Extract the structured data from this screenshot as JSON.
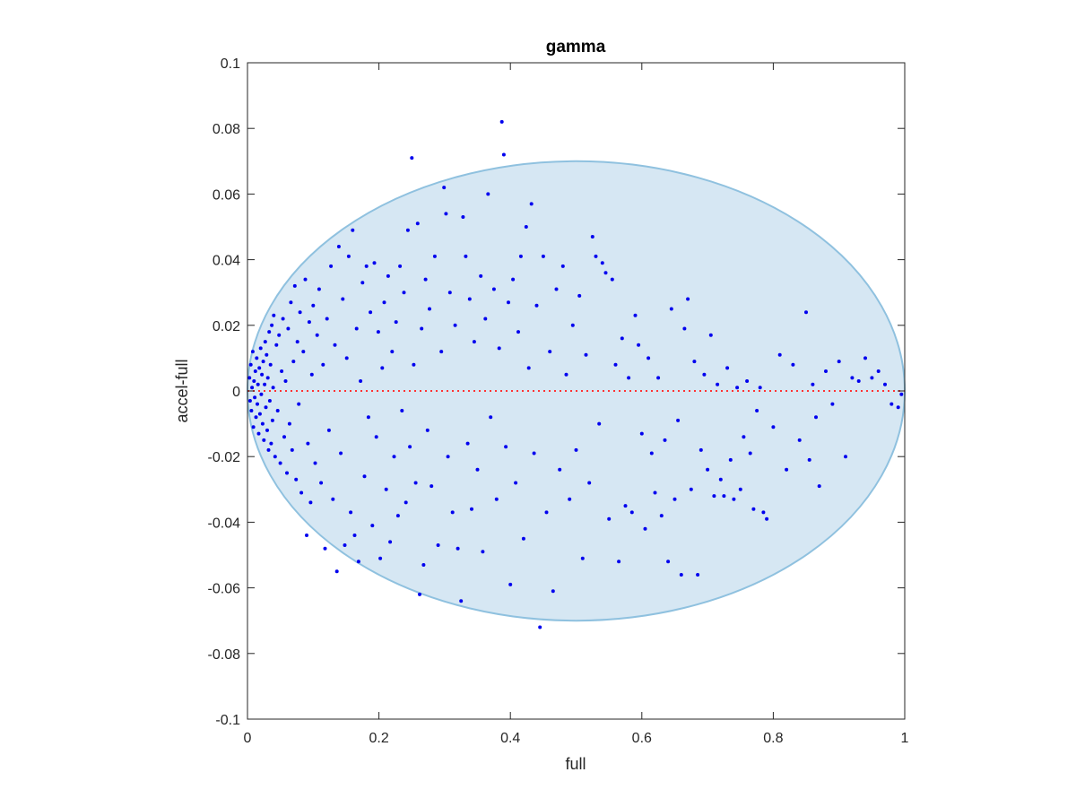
{
  "chart_data": {
    "type": "scatter",
    "title": "gamma",
    "xlabel": "full",
    "ylabel": "accel-full",
    "xlim": [
      0,
      1
    ],
    "ylim": [
      -0.1,
      0.1
    ],
    "xticks": [
      0,
      0.2,
      0.4,
      0.6,
      0.8,
      1
    ],
    "xtick_labels": [
      "0",
      "0.2",
      "0.4",
      "0.6",
      "0.8",
      "1"
    ],
    "yticks": [
      -0.1,
      -0.08,
      -0.06,
      -0.04,
      -0.02,
      0,
      0.02,
      0.04,
      0.06,
      0.08,
      0.1
    ],
    "ytick_labels": [
      "-0.1",
      "-0.08",
      "-0.06",
      "-0.04",
      "-0.02",
      "0",
      "0.02",
      "0.04",
      "0.06",
      "0.08",
      "0.1"
    ],
    "grid": false,
    "legend": "none",
    "colors": {
      "points": "#0000ee",
      "zero_line": "#ff3333",
      "region_fill": "#d6e7f3",
      "region_edge": "#8fc1df",
      "axes": "#262626"
    },
    "region": {
      "shape": "ellipse",
      "center_x": 0.5,
      "center_y": 0.0,
      "radius_x": 0.5,
      "radius_y": 0.07
    },
    "reference_line": {
      "y": 0,
      "style": "dotted"
    },
    "series": [
      {
        "points": [
          [
            0.003,
            0.004
          ],
          [
            0.004,
            -0.003
          ],
          [
            0.005,
            0.008
          ],
          [
            0.006,
            -0.006
          ],
          [
            0.007,
            0.001
          ],
          [
            0.008,
            0.012
          ],
          [
            0.009,
            -0.011
          ],
          [
            0.01,
            0.003
          ],
          [
            0.011,
            -0.002
          ],
          [
            0.012,
            0.006
          ],
          [
            0.013,
            -0.008
          ],
          [
            0.014,
            0.01
          ],
          [
            0.015,
            -0.004
          ],
          [
            0.016,
            0.002
          ],
          [
            0.017,
            -0.013
          ],
          [
            0.018,
            0.007
          ],
          [
            0.019,
            -0.007
          ],
          [
            0.02,
            0.013
          ],
          [
            0.021,
            -0.001
          ],
          [
            0.022,
            0.005
          ],
          [
            0.023,
            -0.01
          ],
          [
            0.024,
            0.009
          ],
          [
            0.025,
            -0.015
          ],
          [
            0.026,
            0.002
          ],
          [
            0.027,
            0.015
          ],
          [
            0.028,
            -0.005
          ],
          [
            0.029,
            0.011
          ],
          [
            0.03,
            -0.012
          ],
          [
            0.031,
            0.004
          ],
          [
            0.032,
            -0.018
          ],
          [
            0.033,
            0.018
          ],
          [
            0.034,
            -0.003
          ],
          [
            0.035,
            0.008
          ],
          [
            0.036,
            -0.016
          ],
          [
            0.037,
            0.02
          ],
          [
            0.038,
            -0.009
          ],
          [
            0.039,
            0.001
          ],
          [
            0.04,
            0.023
          ],
          [
            0.042,
            -0.02
          ],
          [
            0.044,
            0.014
          ],
          [
            0.046,
            -0.006
          ],
          [
            0.048,
            0.017
          ],
          [
            0.05,
            -0.022
          ],
          [
            0.052,
            0.006
          ],
          [
            0.054,
            0.022
          ],
          [
            0.056,
            -0.014
          ],
          [
            0.058,
            0.003
          ],
          [
            0.06,
            -0.025
          ],
          [
            0.062,
            0.019
          ],
          [
            0.064,
            -0.01
          ],
          [
            0.066,
            0.027
          ],
          [
            0.068,
            -0.018
          ],
          [
            0.07,
            0.009
          ],
          [
            0.072,
            0.032
          ],
          [
            0.074,
            -0.027
          ],
          [
            0.076,
            0.015
          ],
          [
            0.078,
            -0.004
          ],
          [
            0.08,
            0.024
          ],
          [
            0.082,
            -0.031
          ],
          [
            0.085,
            0.012
          ],
          [
            0.088,
            0.034
          ],
          [
            0.09,
            -0.044
          ],
          [
            0.092,
            -0.016
          ],
          [
            0.094,
            0.021
          ],
          [
            0.096,
            -0.034
          ],
          [
            0.098,
            0.005
          ],
          [
            0.1,
            0.026
          ],
          [
            0.103,
            -0.022
          ],
          [
            0.106,
            0.017
          ],
          [
            0.109,
            0.031
          ],
          [
            0.112,
            -0.028
          ],
          [
            0.115,
            0.008
          ],
          [
            0.118,
            -0.048
          ],
          [
            0.121,
            0.022
          ],
          [
            0.124,
            -0.012
          ],
          [
            0.127,
            0.038
          ],
          [
            0.13,
            -0.033
          ],
          [
            0.133,
            0.014
          ],
          [
            0.136,
            -0.055
          ],
          [
            0.139,
            0.044
          ],
          [
            0.142,
            -0.019
          ],
          [
            0.145,
            0.028
          ],
          [
            0.148,
            -0.047
          ],
          [
            0.151,
            0.01
          ],
          [
            0.154,
            0.041
          ],
          [
            0.157,
            -0.037
          ],
          [
            0.16,
            0.049
          ],
          [
            0.163,
            -0.044
          ],
          [
            0.166,
            0.019
          ],
          [
            0.169,
            -0.052
          ],
          [
            0.172,
            0.003
          ],
          [
            0.175,
            0.033
          ],
          [
            0.178,
            -0.026
          ],
          [
            0.181,
            0.038
          ],
          [
            0.184,
            -0.008
          ],
          [
            0.187,
            0.024
          ],
          [
            0.19,
            -0.041
          ],
          [
            0.193,
            0.039
          ],
          [
            0.196,
            -0.014
          ],
          [
            0.199,
            0.018
          ],
          [
            0.202,
            -0.051
          ],
          [
            0.205,
            0.007
          ],
          [
            0.208,
            0.027
          ],
          [
            0.211,
            -0.03
          ],
          [
            0.214,
            0.035
          ],
          [
            0.217,
            -0.046
          ],
          [
            0.22,
            0.012
          ],
          [
            0.223,
            -0.02
          ],
          [
            0.226,
            0.021
          ],
          [
            0.229,
            -0.038
          ],
          [
            0.232,
            0.038
          ],
          [
            0.235,
            -0.006
          ],
          [
            0.238,
            0.03
          ],
          [
            0.241,
            -0.034
          ],
          [
            0.244,
            0.049
          ],
          [
            0.247,
            -0.017
          ],
          [
            0.25,
            0.071
          ],
          [
            0.253,
            0.008
          ],
          [
            0.256,
            -0.028
          ],
          [
            0.259,
            0.051
          ],
          [
            0.262,
            -0.062
          ],
          [
            0.265,
            0.019
          ],
          [
            0.268,
            -0.053
          ],
          [
            0.271,
            0.034
          ],
          [
            0.274,
            -0.012
          ],
          [
            0.277,
            0.025
          ],
          [
            0.28,
            -0.029
          ],
          [
            0.285,
            0.041
          ],
          [
            0.29,
            -0.047
          ],
          [
            0.295,
            0.012
          ],
          [
            0.299,
            0.062
          ],
          [
            0.302,
            0.054
          ],
          [
            0.305,
            -0.02
          ],
          [
            0.308,
            0.03
          ],
          [
            0.312,
            -0.037
          ],
          [
            0.316,
            0.02
          ],
          [
            0.32,
            -0.048
          ],
          [
            0.325,
            -0.064
          ],
          [
            0.328,
            0.053
          ],
          [
            0.332,
            0.041
          ],
          [
            0.335,
            -0.016
          ],
          [
            0.338,
            0.028
          ],
          [
            0.341,
            -0.036
          ],
          [
            0.345,
            0.015
          ],
          [
            0.35,
            -0.024
          ],
          [
            0.355,
            0.035
          ],
          [
            0.358,
            -0.049
          ],
          [
            0.362,
            0.022
          ],
          [
            0.366,
            0.06
          ],
          [
            0.37,
            -0.008
          ],
          [
            0.375,
            0.031
          ],
          [
            0.379,
            -0.033
          ],
          [
            0.383,
            0.013
          ],
          [
            0.387,
            0.082
          ],
          [
            0.39,
            0.072
          ],
          [
            0.393,
            -0.017
          ],
          [
            0.397,
            0.027
          ],
          [
            0.4,
            -0.059
          ],
          [
            0.404,
            0.034
          ],
          [
            0.408,
            -0.028
          ],
          [
            0.412,
            0.018
          ],
          [
            0.416,
            0.041
          ],
          [
            0.42,
            -0.045
          ],
          [
            0.424,
            0.05
          ],
          [
            0.428,
            0.007
          ],
          [
            0.432,
            0.057
          ],
          [
            0.436,
            -0.019
          ],
          [
            0.44,
            0.026
          ],
          [
            0.445,
            -0.072
          ],
          [
            0.45,
            0.041
          ],
          [
            0.455,
            -0.037
          ],
          [
            0.46,
            0.012
          ],
          [
            0.465,
            -0.061
          ],
          [
            0.47,
            0.031
          ],
          [
            0.475,
            -0.024
          ],
          [
            0.48,
            0.038
          ],
          [
            0.485,
            0.005
          ],
          [
            0.49,
            -0.033
          ],
          [
            0.495,
            0.02
          ],
          [
            0.5,
            -0.018
          ],
          [
            0.505,
            0.029
          ],
          [
            0.51,
            -0.051
          ],
          [
            0.515,
            0.011
          ],
          [
            0.52,
            -0.028
          ],
          [
            0.525,
            0.047
          ],
          [
            0.53,
            0.041
          ],
          [
            0.535,
            -0.01
          ],
          [
            0.54,
            0.039
          ],
          [
            0.545,
            0.036
          ],
          [
            0.55,
            -0.039
          ],
          [
            0.555,
            0.034
          ],
          [
            0.56,
            0.008
          ],
          [
            0.565,
            -0.052
          ],
          [
            0.57,
            0.016
          ],
          [
            0.575,
            -0.035
          ],
          [
            0.58,
            0.004
          ],
          [
            0.585,
            -0.037
          ],
          [
            0.59,
            0.023
          ],
          [
            0.595,
            0.014
          ],
          [
            0.6,
            -0.013
          ],
          [
            0.605,
            -0.042
          ],
          [
            0.61,
            0.01
          ],
          [
            0.615,
            -0.019
          ],
          [
            0.62,
            -0.031
          ],
          [
            0.625,
            0.004
          ],
          [
            0.63,
            -0.038
          ],
          [
            0.635,
            -0.015
          ],
          [
            0.64,
            -0.052
          ],
          [
            0.645,
            0.025
          ],
          [
            0.65,
            -0.033
          ],
          [
            0.655,
            -0.009
          ],
          [
            0.66,
            -0.056
          ],
          [
            0.665,
            0.019
          ],
          [
            0.67,
            0.028
          ],
          [
            0.675,
            -0.03
          ],
          [
            0.68,
            0.009
          ],
          [
            0.685,
            -0.056
          ],
          [
            0.69,
            -0.018
          ],
          [
            0.695,
            0.005
          ],
          [
            0.7,
            -0.024
          ],
          [
            0.705,
            0.017
          ],
          [
            0.71,
            -0.032
          ],
          [
            0.715,
            0.002
          ],
          [
            0.72,
            -0.027
          ],
          [
            0.725,
            -0.032
          ],
          [
            0.73,
            0.007
          ],
          [
            0.735,
            -0.021
          ],
          [
            0.74,
            -0.033
          ],
          [
            0.745,
            0.001
          ],
          [
            0.75,
            -0.03
          ],
          [
            0.755,
            -0.014
          ],
          [
            0.76,
            0.003
          ],
          [
            0.765,
            -0.019
          ],
          [
            0.77,
            -0.036
          ],
          [
            0.775,
            -0.006
          ],
          [
            0.78,
            0.001
          ],
          [
            0.785,
            -0.037
          ],
          [
            0.79,
            -0.039
          ],
          [
            0.8,
            -0.011
          ],
          [
            0.81,
            0.011
          ],
          [
            0.82,
            -0.024
          ],
          [
            0.83,
            0.008
          ],
          [
            0.84,
            -0.015
          ],
          [
            0.85,
            0.024
          ],
          [
            0.855,
            -0.021
          ],
          [
            0.86,
            0.002
          ],
          [
            0.865,
            -0.008
          ],
          [
            0.87,
            -0.029
          ],
          [
            0.88,
            0.006
          ],
          [
            0.89,
            -0.004
          ],
          [
            0.9,
            0.009
          ],
          [
            0.91,
            -0.02
          ],
          [
            0.92,
            0.004
          ],
          [
            0.93,
            0.003
          ],
          [
            0.94,
            0.01
          ],
          [
            0.95,
            0.004
          ],
          [
            0.96,
            0.006
          ],
          [
            0.97,
            0.002
          ],
          [
            0.98,
            -0.004
          ],
          [
            0.99,
            -0.005
          ],
          [
            0.995,
            -0.001
          ]
        ]
      }
    ]
  }
}
